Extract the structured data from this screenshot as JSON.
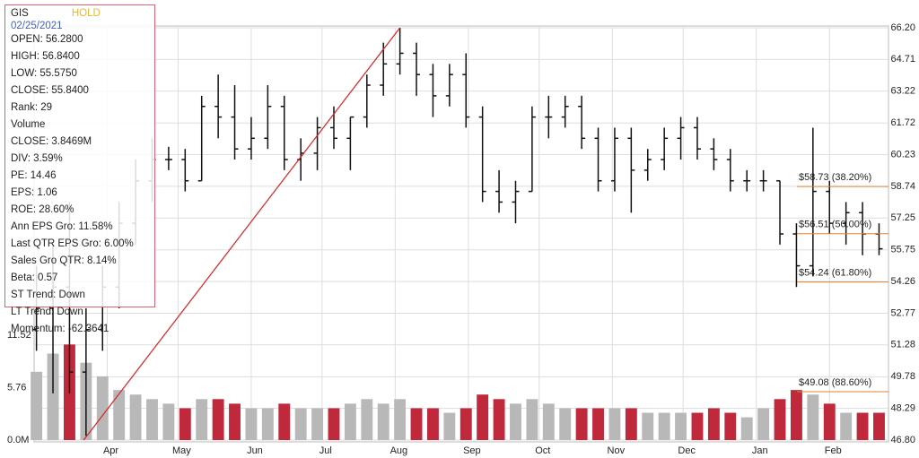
{
  "chart_data": {
    "type": "ohlc",
    "x": [
      1,
      8,
      15,
      22,
      29,
      36,
      43,
      50,
      57,
      64,
      71,
      78,
      85,
      92,
      99,
      106,
      113,
      120,
      127,
      134,
      141,
      148,
      155,
      162,
      169,
      176,
      183,
      190,
      197,
      204,
      211,
      218,
      225,
      232,
      239,
      246,
      253,
      260,
      267,
      274,
      281,
      288,
      295,
      302,
      309,
      316,
      323,
      330,
      337,
      344,
      351,
      358
    ],
    "open": [
      52,
      53,
      54,
      50,
      52,
      54,
      57,
      59,
      60,
      60,
      59,
      62.5,
      62,
      60.5,
      61,
      62.5,
      60,
      60.3,
      61.5,
      61,
      62,
      63.5,
      64.5,
      65,
      64,
      63,
      64,
      62,
      58.5,
      58,
      58.5,
      62,
      62,
      62.5,
      61,
      59,
      61,
      59.5,
      60,
      61,
      61.5,
      60.5,
      60,
      59,
      59,
      59,
      56.5,
      55,
      58.5,
      57,
      57.5,
      56.5
    ],
    "high": [
      55,
      56,
      58,
      53,
      55,
      58,
      60,
      61,
      60.6,
      60.5,
      63,
      64,
      63.5,
      62,
      63.5,
      63,
      61,
      62,
      62.5,
      62,
      64,
      65.5,
      66.2,
      65.5,
      64.5,
      64.5,
      65,
      62.5,
      59.5,
      59,
      62.5,
      63,
      63,
      63,
      61.5,
      61.5,
      61.5,
      60.5,
      61.5,
      62,
      62,
      61,
      60.5,
      59.5,
      59.5,
      59,
      57,
      61.5,
      59,
      58,
      58,
      57
    ],
    "low": [
      51,
      49,
      49,
      47,
      51,
      53,
      56,
      58,
      59.5,
      58.5,
      59,
      61,
      60,
      60,
      60.5,
      59.5,
      59,
      59.5,
      60.5,
      59.5,
      61.5,
      63,
      64,
      63,
      62,
      62.5,
      61.5,
      58,
      57.5,
      57,
      58.5,
      61,
      61.5,
      60.5,
      58.5,
      58.5,
      57.5,
      59,
      59.5,
      60,
      60,
      59.5,
      58.5,
      58.5,
      58.5,
      56,
      54,
      54.5,
      56.5,
      56,
      55.5,
      55.5
    ],
    "close": [
      53,
      54,
      50,
      52,
      54,
      57,
      59,
      60,
      60,
      59,
      62.5,
      62,
      60.5,
      61,
      62.5,
      60,
      60.3,
      61.5,
      61,
      62,
      63.5,
      64.5,
      65,
      64,
      63,
      64,
      62,
      58.5,
      58,
      58.5,
      62,
      62,
      62.5,
      61,
      59,
      61,
      59.5,
      60,
      61,
      61.5,
      60.5,
      60,
      59,
      59,
      59,
      56.5,
      55,
      58.5,
      57,
      57.5,
      56.5,
      55.8
    ],
    "volume": [
      7.5,
      9.5,
      10.5,
      8.5,
      7,
      5.5,
      5,
      4.5,
      4,
      3.5,
      4.5,
      4.5,
      4,
      3.5,
      3.5,
      4,
      3.5,
      3.5,
      3.5,
      4,
      4.5,
      4,
      4.5,
      3.5,
      3.5,
      3,
      3.5,
      5,
      4.5,
      4,
      4.5,
      4,
      3.5,
      3.5,
      3.5,
      3.5,
      3.5,
      3,
      3,
      3,
      3,
      3.5,
      3,
      2.5,
      3.5,
      4.5,
      5.5,
      5,
      4,
      3,
      3,
      3
    ],
    "xlim": [
      0,
      362
    ],
    "xticks": [
      {
        "value": 31,
        "label": "Apr"
      },
      {
        "value": 61,
        "label": "May"
      },
      {
        "value": 92,
        "label": "Jun"
      },
      {
        "value": 122,
        "label": "Jul"
      },
      {
        "value": 153,
        "label": "Aug"
      },
      {
        "value": 184,
        "label": "Sep"
      },
      {
        "value": 214,
        "label": "Oct"
      },
      {
        "value": 245,
        "label": "Nov"
      },
      {
        "value": 275,
        "label": "Dec"
      },
      {
        "value": 306,
        "label": "Jan"
      },
      {
        "value": 337,
        "label": "Feb"
      }
    ],
    "ylim": [
      46.8,
      66.2
    ],
    "yticks": [
      {
        "value": 46.8,
        "label": "46.80"
      },
      {
        "value": 48.29,
        "label": "48.29"
      },
      {
        "value": 49.78,
        "label": "49.78"
      },
      {
        "value": 51.28,
        "label": "51.28"
      },
      {
        "value": 52.77,
        "label": "52.77"
      },
      {
        "value": 54.26,
        "label": "54.26"
      },
      {
        "value": 55.75,
        "label": "55.75"
      },
      {
        "value": 57.25,
        "label": "57.25"
      },
      {
        "value": 58.74,
        "label": "58.74"
      },
      {
        "value": 60.23,
        "label": "60.23"
      },
      {
        "value": 61.72,
        "label": "61.72"
      },
      {
        "value": 63.22,
        "label": "63.22"
      },
      {
        "value": 64.71,
        "label": "64.71"
      },
      {
        "value": 66.2,
        "label": "66.20"
      }
    ],
    "volume_lim": [
      0,
      11.52
    ],
    "volume_ticks": [
      {
        "value": 0,
        "label": "0.0M"
      },
      5.76,
      11.52
    ],
    "fib_levels": [
      {
        "value": 58.73,
        "label": "$58.73 (38.20%)"
      },
      {
        "value": 56.51,
        "label": "$56.51 (50.00%)"
      },
      {
        "value": 54.24,
        "label": "$54.24 (61.80%)"
      },
      {
        "value": 49.08,
        "label": "$49.08 (88.60%)"
      }
    ],
    "trendline": {
      "x": [
        21,
        155
      ],
      "y": [
        46.8,
        66.2
      ]
    },
    "grid": true,
    "panel": {
      "symbol": "GIS",
      "rating": "HOLD",
      "date": "02/25/2021",
      "lines": [
        "OPEN: 56.2800",
        "HIGH: 56.8400",
        "LOW: 55.5750",
        "CLOSE: 55.8400",
        "Rank: 29",
        "Volume",
        "CLOSE: 3.8469M",
        "DIV: 3.59%",
        "PE: 14.46",
        "EPS: 1.06",
        "ROE: 28.60%",
        "Ann EPS Gro: 11.58%",
        "Last QTR EPS Gro: 6.00%",
        "Sales Gro QTR: 8.14%",
        "Beta: 0.57",
        "ST Trend: Down",
        "LT Trend: Down",
        "Momentum: -62.3641"
      ]
    }
  }
}
